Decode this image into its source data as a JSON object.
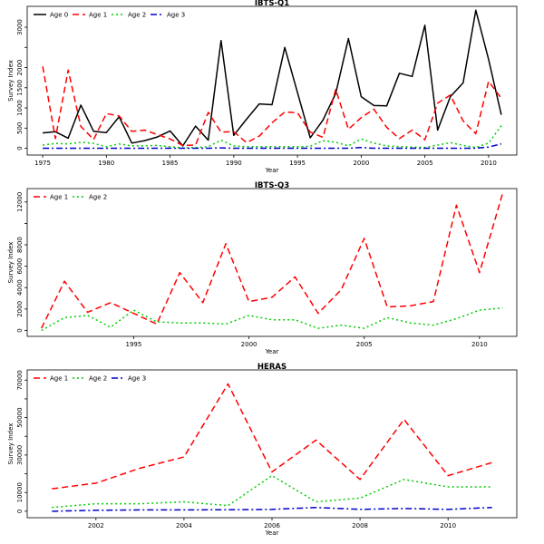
{
  "colors": {
    "Age 0": "#000000",
    "Age 1": "#ff0000",
    "Age 2": "#00cd00",
    "Age 3": "#0000cd"
  },
  "chart_data": [
    {
      "type": "line",
      "title": "IBTS-Q1",
      "xlabel": "Year",
      "ylabel": "Survey Index",
      "xlim": [
        1974,
        2012
      ],
      "ylim": [
        -100,
        3450
      ],
      "xticks": [
        1975,
        1980,
        1985,
        1990,
        1995,
        2000,
        2005,
        2010
      ],
      "yticks": [
        0,
        500,
        1000,
        1500,
        2000,
        2500,
        3000
      ],
      "yticks_labeled": [
        0,
        500,
        1000,
        1500,
        2000,
        3000
      ],
      "legend_position": "top-left",
      "x": [
        1975,
        1976,
        1977,
        1978,
        1979,
        1980,
        1981,
        1982,
        1983,
        1984,
        1985,
        1986,
        1987,
        1988,
        1989,
        1990,
        1991,
        1992,
        1993,
        1994,
        1995,
        1996,
        1997,
        1998,
        1999,
        2000,
        2001,
        2002,
        2003,
        2004,
        2005,
        2006,
        2007,
        2008,
        2009,
        2010,
        2011
      ],
      "series": [
        {
          "name": "Age 0",
          "values": [
            380,
            410,
            250,
            1070,
            420,
            390,
            780,
            130,
            190,
            280,
            430,
            60,
            550,
            200,
            2670,
            320,
            720,
            1100,
            1080,
            2500,
            1380,
            260,
            700,
            1360,
            2720,
            1280,
            1060,
            1050,
            1860,
            1780,
            3050,
            450,
            1280,
            1620,
            3420,
            2200,
            830
          ]
        },
        {
          "name": "Age 1",
          "values": [
            2030,
            240,
            1940,
            540,
            220,
            860,
            800,
            420,
            450,
            340,
            230,
            70,
            80,
            890,
            400,
            410,
            140,
            300,
            630,
            900,
            880,
            400,
            270,
            1460,
            470,
            760,
            970,
            520,
            240,
            450,
            210,
            1120,
            1320,
            680,
            360,
            1660,
            1240
          ]
        },
        {
          "name": "Age 2",
          "values": [
            80,
            120,
            110,
            150,
            120,
            40,
            110,
            60,
            60,
            70,
            40,
            10,
            20,
            40,
            200,
            60,
            40,
            40,
            40,
            40,
            40,
            50,
            190,
            150,
            60,
            230,
            130,
            60,
            40,
            30,
            20,
            80,
            140,
            70,
            20,
            130,
            560
          ]
        },
        {
          "name": "Age 3",
          "values": [
            0,
            0,
            0,
            0,
            0,
            0,
            0,
            0,
            0,
            0,
            0,
            0,
            0,
            0,
            10,
            0,
            0,
            0,
            0,
            0,
            0,
            0,
            0,
            0,
            0,
            20,
            0,
            0,
            0,
            0,
            0,
            0,
            0,
            0,
            0,
            30,
            110
          ]
        }
      ]
    },
    {
      "type": "line",
      "title": "IBTS-Q3",
      "xlabel": "Year",
      "ylabel": "Survey Index",
      "xlim": [
        1990.5,
        2011.5
      ],
      "ylim": [
        -300,
        13000
      ],
      "xticks": [
        1995,
        2000,
        2005,
        2010
      ],
      "yticks": [
        0,
        2000,
        4000,
        6000,
        8000,
        10000,
        12000
      ],
      "yticks_labeled": [
        0,
        2000,
        4000,
        6000,
        8000,
        12000
      ],
      "legend_position": "top-left",
      "x": [
        1991,
        1992,
        1993,
        1994,
        1995,
        1996,
        1997,
        1998,
        1999,
        2000,
        2001,
        2002,
        2003,
        2004,
        2005,
        2006,
        2007,
        2008,
        2009,
        2010,
        2011
      ],
      "series": [
        {
          "name": "Age 1",
          "values": [
            200,
            4600,
            1700,
            2600,
            1600,
            600,
            5400,
            2600,
            8100,
            2700,
            3100,
            5000,
            1600,
            3800,
            8600,
            2200,
            2300,
            2700,
            11700,
            5400,
            12800
          ]
        },
        {
          "name": "Age 2",
          "values": [
            0,
            1200,
            1400,
            300,
            1900,
            800,
            700,
            700,
            600,
            1400,
            1000,
            1000,
            200,
            500,
            200,
            1200,
            700,
            500,
            1100,
            1900,
            2100
          ]
        }
      ]
    },
    {
      "type": "line",
      "title": "HERAS",
      "xlabel": "Year",
      "ylabel": "Survey Index",
      "xlim": [
        2000.5,
        2011.5
      ],
      "ylim": [
        -2000,
        74000
      ],
      "xticks": [
        2002,
        2004,
        2006,
        2008,
        2010
      ],
      "yticks": [
        0,
        10000,
        20000,
        30000,
        40000,
        50000,
        60000,
        70000
      ],
      "yticks_labeled": [
        0,
        10000,
        30000,
        50000,
        70000
      ],
      "legend_position": "top-left",
      "x": [
        2001,
        2002,
        2003,
        2004,
        2005,
        2006,
        2007,
        2008,
        2009,
        2010,
        2011
      ],
      "series": [
        {
          "name": "Age 1",
          "values": [
            12000,
            15000,
            23000,
            29000,
            68000,
            21000,
            38000,
            17000,
            49000,
            19000,
            26000
          ]
        },
        {
          "name": "Age 2",
          "values": [
            2000,
            4000,
            4000,
            5000,
            3000,
            19000,
            5000,
            7000,
            17000,
            13000,
            13000
          ]
        },
        {
          "name": "Age 3",
          "values": [
            0,
            500,
            700,
            700,
            800,
            1000,
            2000,
            1000,
            1500,
            1000,
            2000
          ]
        }
      ]
    }
  ]
}
